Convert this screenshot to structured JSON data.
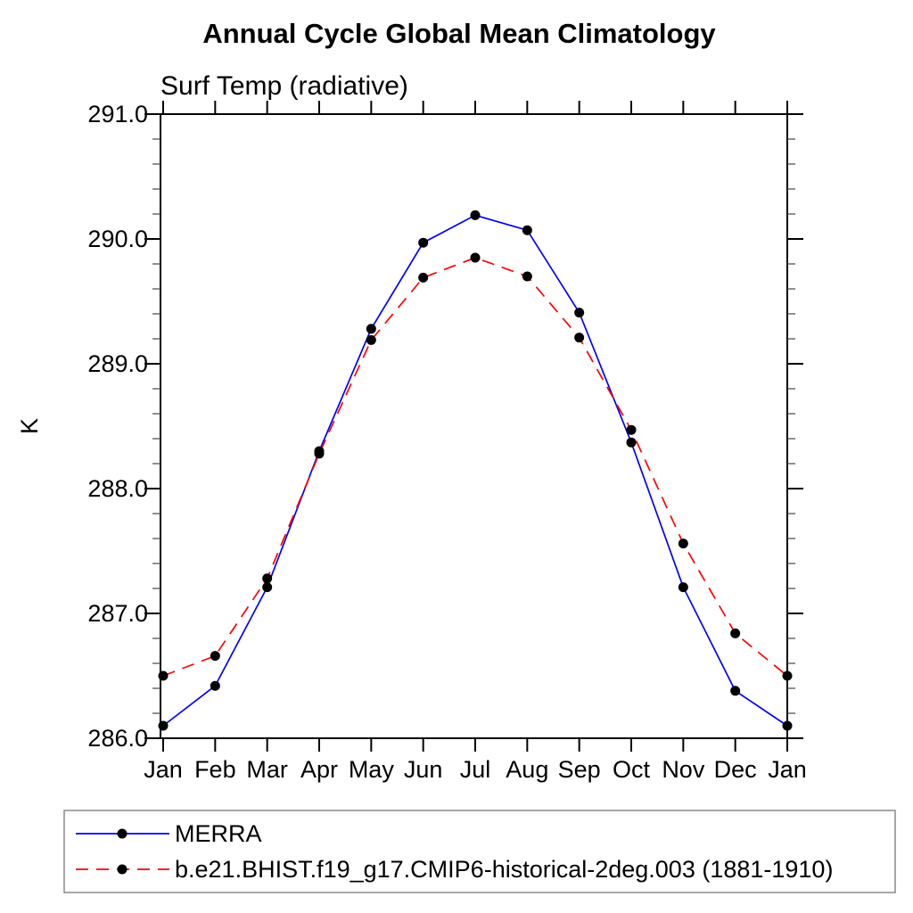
{
  "title": "Annual Cycle Global Mean Climatology",
  "subtitle": "Surf Temp (radiative)",
  "chart_data": {
    "type": "line",
    "categories": [
      "Jan",
      "Feb",
      "Mar",
      "Apr",
      "May",
      "Jun",
      "Jul",
      "Aug",
      "Sep",
      "Oct",
      "Nov",
      "Dec",
      "Jan"
    ],
    "xlabel": "",
    "ylabel": "K",
    "ylim": [
      286.0,
      291.0
    ],
    "ytick_interval": 1.0,
    "yminor_interval": 0.2,
    "ytick_format_decimals": 1,
    "grid": false,
    "legend_position": "bottom-left",
    "marker_color": "#000000",
    "series": [
      {
        "name": "MERRA",
        "color": "#0000ff",
        "line_style": "solid",
        "marker": "filled-circle",
        "values": [
          286.1,
          286.42,
          287.21,
          288.3,
          289.28,
          289.97,
          290.19,
          290.07,
          289.41,
          288.37,
          287.21,
          286.38,
          286.1
        ]
      },
      {
        "name": "b.e21.BHIST.f19_g17.CMIP6-historical-2deg.003 (1881-1910)",
        "color": "#ff0000",
        "line_style": "dashed",
        "marker": "filled-circle",
        "values": [
          286.5,
          286.66,
          287.28,
          288.28,
          289.19,
          289.69,
          289.85,
          289.7,
          289.21,
          288.47,
          287.56,
          286.84,
          286.5
        ]
      }
    ]
  }
}
